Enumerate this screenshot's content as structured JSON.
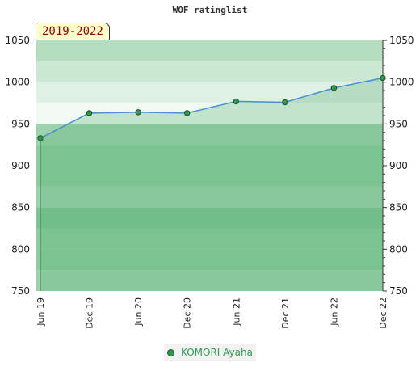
{
  "chart_data": {
    "type": "line",
    "title": "WOF ratinglist",
    "period": "2019-2022",
    "xlabel": "",
    "ylabel": "",
    "ylim": [
      750,
      1050
    ],
    "yticks": [
      750,
      800,
      850,
      900,
      950,
      1000,
      1050
    ],
    "x": [
      "Jun 19",
      "Dec 19",
      "Jun 20",
      "Dec 20",
      "Jun 21",
      "Dec 21",
      "Jun 22",
      "Dec 22"
    ],
    "series": [
      {
        "name": "KOMORI Ayaha",
        "values": [
          933,
          963,
          964,
          963,
          977,
          976,
          993,
          1005
        ],
        "color": "#2e9b4e",
        "line_color": "#4a8fd6"
      }
    ],
    "bands": [
      {
        "from": 1025,
        "to": 1050,
        "color": "#b5ddc0"
      },
      {
        "from": 1000,
        "to": 1025,
        "color": "#cbe8d3"
      },
      {
        "from": 975,
        "to": 1000,
        "color": "#dff1e4"
      },
      {
        "from": 950,
        "to": 975,
        "color": "#f0f9f2"
      },
      {
        "from": 925,
        "to": 950,
        "color": "#9cd3ac"
      },
      {
        "from": 900,
        "to": 925,
        "color": "#8ccc9f"
      },
      {
        "from": 875,
        "to": 900,
        "color": "#8ccc9f"
      },
      {
        "from": 850,
        "to": 875,
        "color": "#9cd3ac"
      },
      {
        "from": 825,
        "to": 850,
        "color": "#7cc494"
      },
      {
        "from": 800,
        "to": 825,
        "color": "#8ccc9f"
      },
      {
        "from": 775,
        "to": 800,
        "color": "#8ccc9f"
      },
      {
        "from": 750,
        "to": 775,
        "color": "#9cd3ac"
      }
    ],
    "fill_color": "#5aae74",
    "legend": "bottom"
  }
}
